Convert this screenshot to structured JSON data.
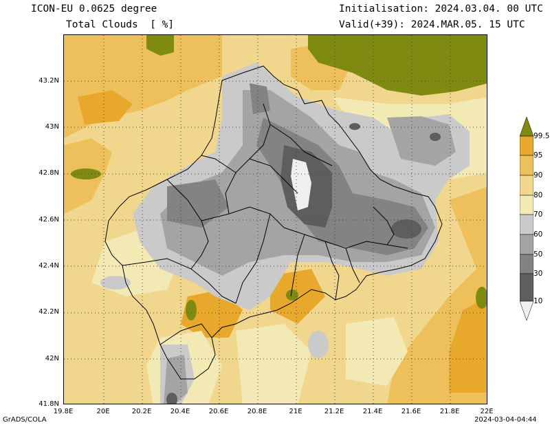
{
  "header": {
    "model": "ICON-EU 0.0625 degree",
    "variable": "Total Clouds  [ %]",
    "init": "Initialisation: 2024.03.04. 00 UTC",
    "valid": "Valid(+39): 2024.MAR.05. 15 UTC"
  },
  "axes": {
    "y_ticks": [
      "43.2N",
      "43N",
      "42.8N",
      "42.6N",
      "42.4N",
      "42.2N",
      "42N",
      "41.8N"
    ],
    "x_ticks": [
      "19.8E",
      "20E",
      "20.2E",
      "20.4E",
      "20.6E",
      "20.8E",
      "21E",
      "21.2E",
      "21.4E",
      "21.6E",
      "21.8E",
      "22E"
    ]
  },
  "colorbar": {
    "levels": [
      "99.5",
      "95",
      "90",
      "80",
      "70",
      "60",
      "50",
      "30",
      "10"
    ],
    "colors": [
      "#7f8a10",
      "#e8a82c",
      "#eec05c",
      "#f1d78e",
      "#f3e9b5",
      "#cacaca",
      "#a4a4a4",
      "#838383",
      "#5e5e5e",
      "#efefef"
    ]
  },
  "footer": {
    "left": "GrADS/COLA",
    "right": "2024-03-04-04:44"
  },
  "icons": [
    "colorbar-top-triangle",
    "colorbar-bottom-triangle"
  ]
}
